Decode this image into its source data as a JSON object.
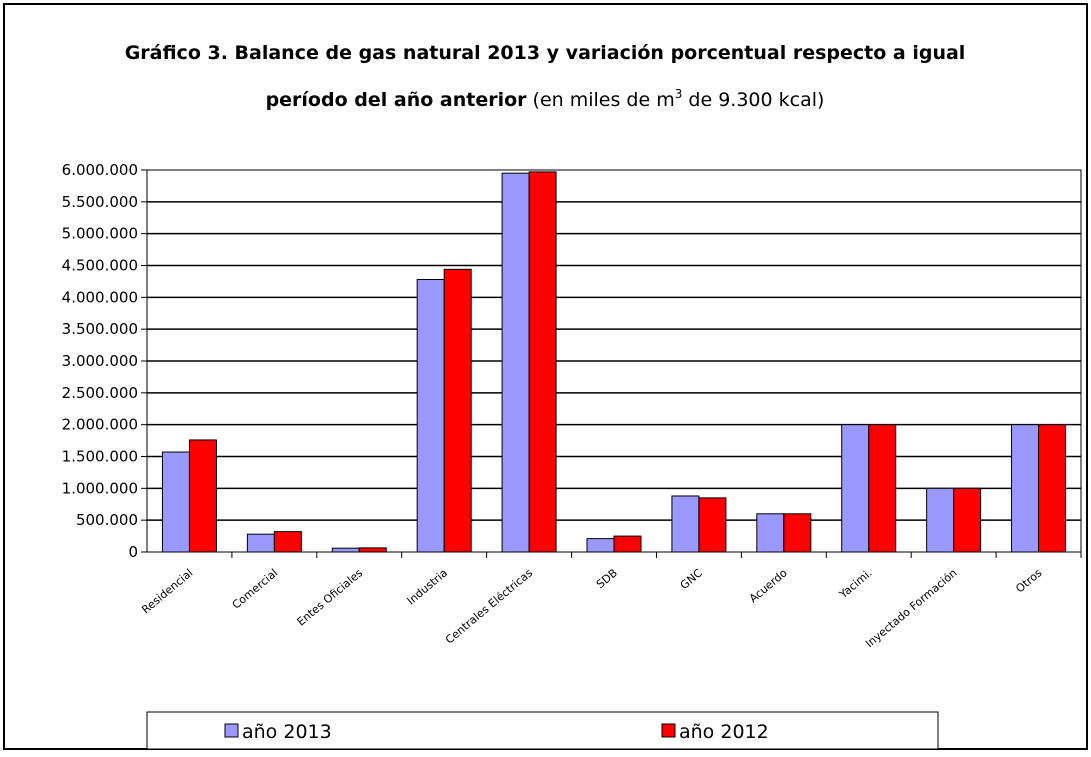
{
  "chart_data": {
    "type": "bar",
    "title_line1": "Gráfico 3. Balance de gas natural 2013 y variación porcentual respecto a igual",
    "title_line2_bold": "período del año anterior",
    "title_line2_normal_pre": " (en miles de m",
    "title_line2_sup": "3",
    "title_line2_normal_post": " de 9.300 kcal)",
    "categories": [
      "Residencial",
      "Comercial",
      "Entes Oficiales",
      "Industria",
      "Centrales Eléctricas",
      "SDB",
      "GNC",
      "Acuerdo",
      "Yacimi.",
      "Inyectado Formación",
      "Otros"
    ],
    "series": [
      {
        "name": "año 2013",
        "color": "#9999ff",
        "values": [
          1570000,
          280000,
          60000,
          4280000,
          5950000,
          210000,
          880000,
          600000,
          2000000,
          1000000,
          2000000
        ]
      },
      {
        "name": "año 2012",
        "color": "#ff0000",
        "values": [
          1760000,
          320000,
          65000,
          4440000,
          5970000,
          250000,
          850000,
          600000,
          2000000,
          1000000,
          2000000
        ]
      }
    ],
    "ylim": [
      0,
      6000000
    ],
    "yticks": [
      0,
      500000,
      1000000,
      1500000,
      2000000,
      2500000,
      3000000,
      3500000,
      4000000,
      4500000,
      5000000,
      5500000,
      6000000
    ],
    "ytick_labels": [
      "0",
      "500.000",
      "1.000.000",
      "1.500.000",
      "2.000.000",
      "2.500.000",
      "3.000.000",
      "3.500.000",
      "4.000.000",
      "4.500.000",
      "5.000.000",
      "5.500.000",
      "6.000.000"
    ],
    "grid": true,
    "legend_position": "bottom"
  }
}
